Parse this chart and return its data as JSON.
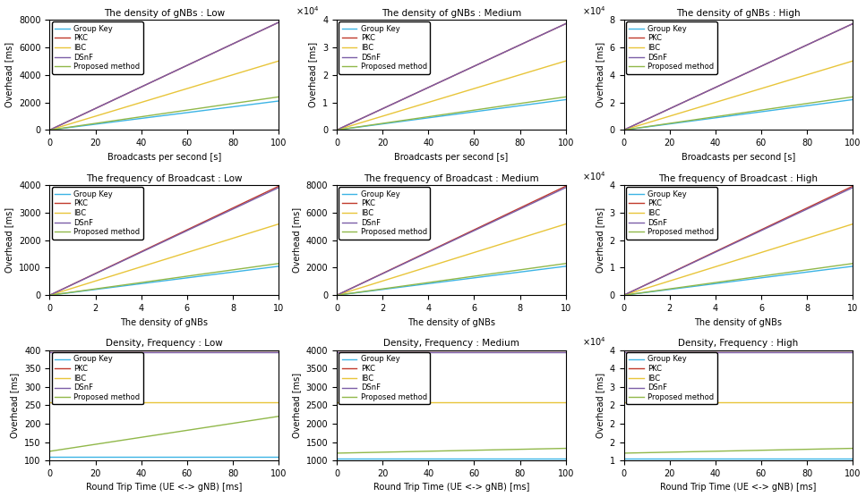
{
  "rows": [
    {
      "titles": [
        "The density of gNBs : Low",
        "The density of gNBs : Medium",
        "The density of gNBs : High"
      ],
      "xlabel": "Broadcasts per second [s]",
      "xlim": [
        0,
        100
      ],
      "x_ticks": [
        0,
        20,
        40,
        60,
        80,
        100
      ],
      "subplots": [
        {
          "ylim": [
            0,
            8000
          ],
          "y_ticks": [
            0,
            2000,
            4000,
            6000,
            8000
          ],
          "y_exp": null,
          "slopes": [
            21.0,
            78.0,
            50.0,
            78.0,
            24.0
          ],
          "intercepts": [
            0,
            0,
            0,
            0,
            0
          ]
        },
        {
          "ylim": [
            0,
            40000
          ],
          "y_ticks": [
            0,
            10000,
            20000,
            30000,
            40000
          ],
          "y_exp": 4,
          "slopes": [
            110.0,
            385.0,
            250.0,
            385.0,
            120.0
          ],
          "intercepts": [
            0,
            0,
            0,
            0,
            0
          ]
        },
        {
          "ylim": [
            0,
            80000
          ],
          "y_ticks": [
            0,
            20000,
            40000,
            60000,
            80000
          ],
          "y_exp": 4,
          "slopes": [
            220.0,
            770.0,
            500.0,
            770.0,
            240.0
          ],
          "intercepts": [
            0,
            0,
            0,
            0,
            0
          ]
        }
      ]
    },
    {
      "titles": [
        "The frequency of Broadcast : Low",
        "The frequency of Broadcast : Medium",
        "The frequency of Broadcast : High"
      ],
      "xlabel": "The density of gNBs",
      "xlim": [
        0,
        10
      ],
      "x_ticks": [
        0,
        2,
        4,
        6,
        8,
        10
      ],
      "subplots": [
        {
          "ylim": [
            0,
            4000
          ],
          "y_ticks": [
            0,
            1000,
            2000,
            3000,
            4000
          ],
          "y_exp": null,
          "slopes": [
            105.0,
            395.0,
            258.0,
            390.0,
            115.0
          ],
          "intercepts": [
            0,
            0,
            0,
            0,
            0
          ]
        },
        {
          "ylim": [
            0,
            8000
          ],
          "y_ticks": [
            0,
            2000,
            4000,
            6000,
            8000
          ],
          "y_exp": null,
          "slopes": [
            210.0,
            790.0,
            516.0,
            780.0,
            230.0
          ],
          "intercepts": [
            0,
            0,
            0,
            0,
            0
          ]
        },
        {
          "ylim": [
            0,
            40000
          ],
          "y_ticks": [
            0,
            10000,
            20000,
            30000,
            40000
          ],
          "y_exp": 4,
          "slopes": [
            1050.0,
            3950.0,
            2580.0,
            3900.0,
            1150.0
          ],
          "intercepts": [
            0,
            0,
            0,
            0,
            0
          ]
        }
      ]
    },
    {
      "titles": [
        "Density, Frequency : Low",
        "Density, Frequency : Medium",
        "Density, Frequency : High"
      ],
      "xlabel": "Round Trip Time (UE <-> gNB) [ms]",
      "xlim": [
        0,
        100
      ],
      "x_ticks": [
        0,
        20,
        40,
        60,
        80,
        100
      ],
      "subplots": [
        {
          "ylim": [
            100,
            400
          ],
          "y_ticks": [
            100,
            150,
            200,
            250,
            300,
            350,
            400
          ],
          "y_exp": null,
          "slopes": [
            0.0,
            0.0,
            0.0,
            0.0,
            0.95
          ],
          "intercepts": [
            110.0,
            400.0,
            258.0,
            395.0,
            125.0
          ]
        },
        {
          "ylim": [
            1000,
            4000
          ],
          "y_ticks": [
            1000,
            1500,
            2000,
            2500,
            3000,
            3500,
            4000
          ],
          "y_exp": null,
          "slopes": [
            0.0,
            0.0,
            0.0,
            0.0,
            1.3
          ],
          "intercepts": [
            1050.0,
            3980.0,
            2580.0,
            3950.0,
            1200.0
          ]
        },
        {
          "ylim": [
            10000,
            40000
          ],
          "y_ticks": [
            10000,
            15000,
            20000,
            25000,
            30000,
            35000,
            40000
          ],
          "y_exp": 4,
          "slopes": [
            0.0,
            0.0,
            0.0,
            0.0,
            13.0
          ],
          "intercepts": [
            10500.0,
            39800.0,
            25800.0,
            39500.0,
            12000.0
          ]
        }
      ]
    }
  ],
  "methods": [
    "Group Key",
    "PKC",
    "IBC",
    "DSnF",
    "Proposed method"
  ],
  "colors": [
    "#3CB4E5",
    "#C0392B",
    "#E8C53A",
    "#7B5EA7",
    "#91B84A"
  ],
  "linewidths": [
    1.0,
    1.0,
    1.0,
    1.0,
    1.0
  ],
  "ylabel": "Overhead [ms]"
}
